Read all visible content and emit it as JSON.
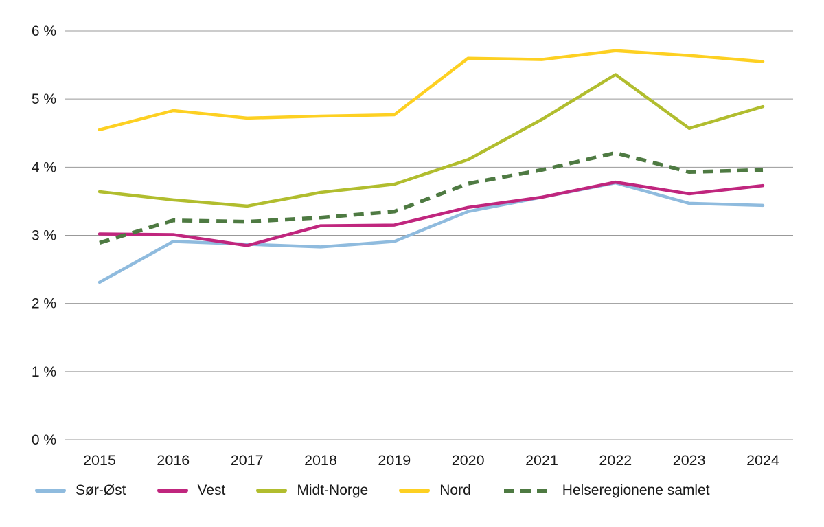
{
  "chart_data": {
    "type": "line",
    "title": "",
    "xlabel": "",
    "ylabel": "",
    "x": [
      2015,
      2016,
      2017,
      2018,
      2019,
      2020,
      2021,
      2022,
      2023,
      2024
    ],
    "series": [
      {
        "name": "Sør-Øst",
        "color": "#8FBBDE",
        "dash": false,
        "values": [
          2.31,
          2.91,
          2.87,
          2.83,
          2.91,
          3.35,
          3.56,
          3.77,
          3.47,
          3.44
        ]
      },
      {
        "name": "Vest",
        "color": "#C0267E",
        "dash": false,
        "values": [
          3.02,
          3.01,
          2.85,
          3.14,
          3.15,
          3.41,
          3.56,
          3.78,
          3.61,
          3.73
        ]
      },
      {
        "name": "Midt-Norge",
        "color": "#B1BD2E",
        "dash": false,
        "values": [
          3.64,
          3.52,
          3.43,
          3.63,
          3.75,
          4.11,
          4.7,
          5.36,
          4.57,
          4.89
        ]
      },
      {
        "name": "Nord",
        "color": "#FDD022",
        "dash": false,
        "values": [
          4.55,
          4.83,
          4.72,
          4.75,
          4.77,
          5.6,
          5.58,
          5.71,
          5.64,
          5.55
        ]
      },
      {
        "name": "Helseregionene samlet",
        "color": "#4E7A42",
        "dash": true,
        "values": [
          2.89,
          3.22,
          3.2,
          3.26,
          3.35,
          3.76,
          3.96,
          4.21,
          3.93,
          3.96
        ]
      }
    ],
    "ylim": [
      0,
      6
    ],
    "ytick_step": 1,
    "ytick_suffix": " %",
    "grid": true,
    "grid_color": "#999999",
    "legend_position": "bottom"
  }
}
